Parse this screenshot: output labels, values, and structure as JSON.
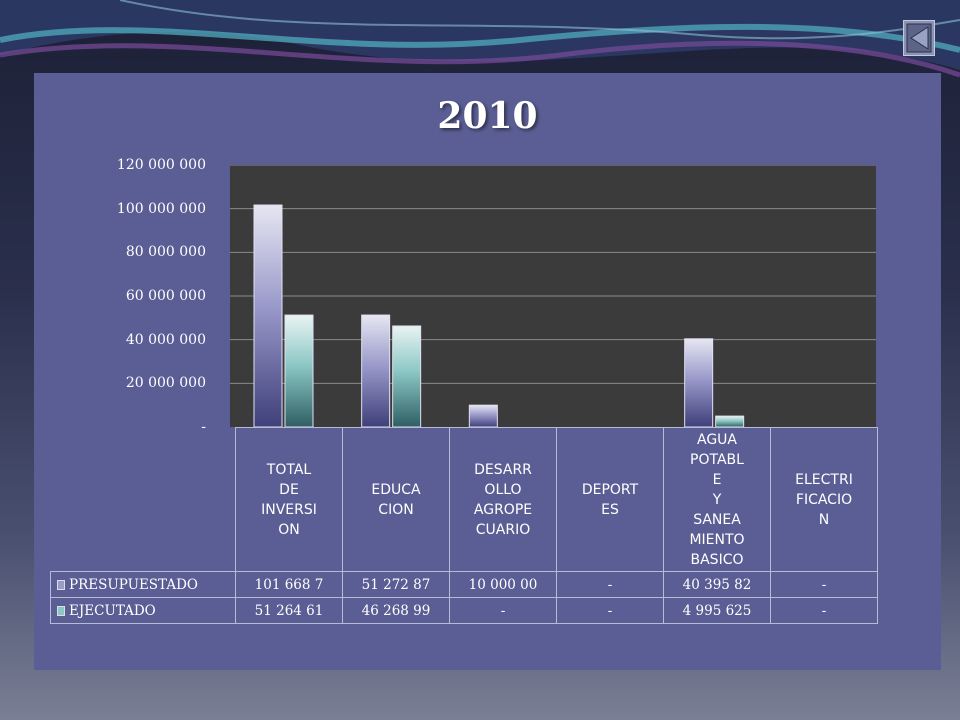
{
  "slide": {
    "nav_icon": "triangle-left-icon",
    "colors": {
      "panel": "#5b5e94",
      "plot_bg": "#3b3b3b",
      "presupuestado": "#9a9acb",
      "ejecutado": "#8cc7c5"
    }
  },
  "chart_data": {
    "type": "bar",
    "title": "2010",
    "categories": [
      "TOTAL DE INVERSI ON",
      "EDUCA CION",
      "DESARR OLLO AGROPE CUARIO",
      "DEPORT ES",
      "AGUA POTABL E Y SANEA MIENTO BASICO",
      "ELECTRI FICACIO N"
    ],
    "series": [
      {
        "name": "PRESUPUESTADO",
        "values": [
          101668700,
          51272870,
          10000000,
          0,
          40395820,
          0
        ]
      },
      {
        "name": "EJECUTADO",
        "values": [
          51264610,
          46268990,
          0,
          0,
          4995625,
          0
        ]
      }
    ],
    "table_values": {
      "PRESUPUESTADO": [
        "101 668 7",
        "51 272 87",
        "10 000 00",
        "-",
        "40 395 82",
        "-"
      ],
      "EJECUTADO": [
        "51 264 61",
        "46 268 99",
        "-",
        "-",
        "4 995 625",
        "-"
      ]
    },
    "yticks": [
      "-",
      "20 000 000",
      "40 000 000",
      "60 000 000",
      "80 000 000",
      "100 000 000",
      "120 000 000"
    ],
    "ylim": [
      0,
      120000000
    ],
    "grid": true,
    "legend": "table-rows"
  }
}
